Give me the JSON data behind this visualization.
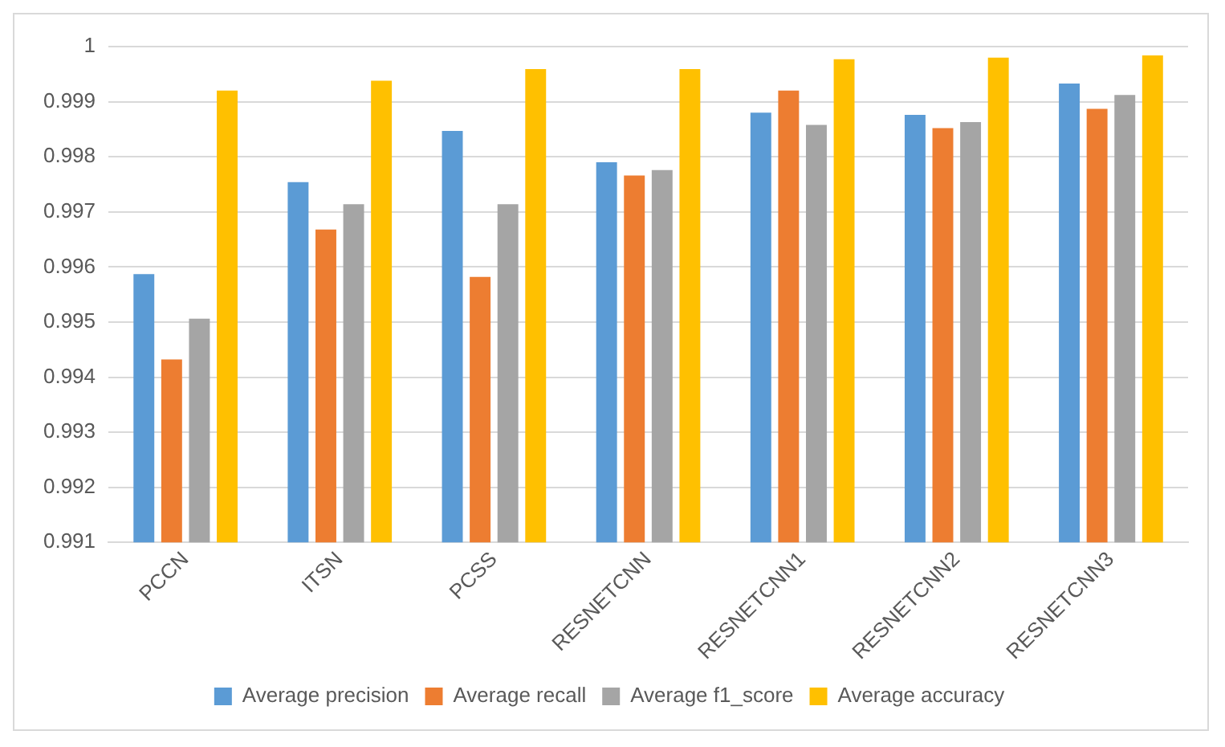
{
  "chart_data": {
    "type": "bar",
    "categories": [
      "PCCN",
      "ITSN",
      "PCSS",
      "RESNETCNN",
      "RESNETCNN1",
      "RESNETCNN2",
      "RESNETCNN3"
    ],
    "series": [
      {
        "name": "Average precision",
        "color": "#5b9bd5",
        "values": [
          0.99587,
          0.99754,
          0.99847,
          0.9979,
          0.9988,
          0.99876,
          0.99933
        ]
      },
      {
        "name": "Average recall",
        "color": "#ed7d31",
        "values": [
          0.99432,
          0.99668,
          0.99582,
          0.99766,
          0.9992,
          0.99852,
          0.99887
        ]
      },
      {
        "name": "Average f1_score",
        "color": "#a5a5a5",
        "values": [
          0.99506,
          0.99714,
          0.99714,
          0.99776,
          0.99858,
          0.99863,
          0.99912
        ]
      },
      {
        "name": "Average accuracy",
        "color": "#ffc000",
        "values": [
          0.9992,
          0.99938,
          0.99959,
          0.99959,
          0.99977,
          0.9998,
          0.99984
        ]
      }
    ],
    "ylim": [
      0.991,
      1
    ],
    "yticks": [
      0.991,
      0.992,
      0.993,
      0.994,
      0.995,
      0.996,
      0.997,
      0.998,
      0.999,
      1
    ],
    "grid": "y",
    "legend": "bottom"
  }
}
